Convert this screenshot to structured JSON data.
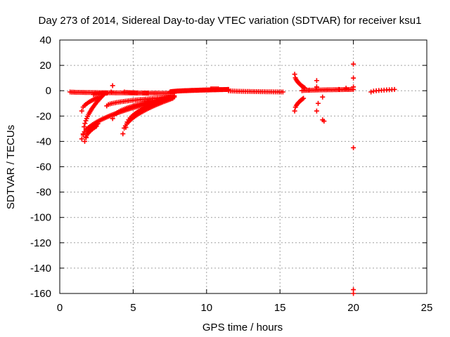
{
  "chart_data": {
    "type": "scatter",
    "title": "Day 273 of 2014, Sidereal Day-to-day VTEC variation (SDTVAR) for receiver ksu1",
    "xlabel": "GPS time / hours",
    "ylabel": "SDTVAR / TECUs",
    "xlim": [
      0,
      25
    ],
    "ylim": [
      -160,
      40
    ],
    "xticks": [
      "0",
      "5",
      "10",
      "15",
      "20",
      "25"
    ],
    "yticks": [
      "40",
      "20",
      "0",
      "-20",
      "-40",
      "-60",
      "-80",
      "-100",
      "-120",
      "-140",
      "-160"
    ],
    "xtick_values": [
      0,
      5,
      10,
      15,
      20,
      25
    ],
    "ytick_values": [
      40,
      20,
      0,
      -20,
      -40,
      -60,
      -80,
      -100,
      -120,
      -140,
      -160
    ],
    "grid": true,
    "marker": "+",
    "series": [
      {
        "name": "SDTVAR",
        "color": "#ff0000",
        "segments": [
          {
            "x0": 0.7,
            "x1": 7.8,
            "y0": -1,
            "y1": -2,
            "n": 70
          },
          {
            "x0": 1.5,
            "x1": 7.8,
            "y0": -38,
            "y1": -5,
            "n": 70
          },
          {
            "x0": 1.6,
            "x1": 3.0,
            "y0": -35,
            "y1": -3,
            "n": 25
          },
          {
            "x0": 1.7,
            "x1": 2.5,
            "y0": -40,
            "y1": -28,
            "n": 12
          },
          {
            "x0": 1.8,
            "x1": 2.6,
            "y0": -37,
            "y1": -26,
            "n": 12
          },
          {
            "x0": 1.5,
            "x1": 2.7,
            "y0": -16,
            "y1": -5,
            "n": 14
          },
          {
            "x0": 2.3,
            "x1": 3.2,
            "y0": -3,
            "y1": -2,
            "n": 10
          },
          {
            "x0": 3.2,
            "x1": 7.7,
            "y0": -12,
            "y1": -5,
            "n": 40
          },
          {
            "x0": 3.6,
            "x1": 7.7,
            "y0": -22,
            "y1": -5,
            "n": 40
          },
          {
            "x0": 4.3,
            "x1": 7.7,
            "y0": -34,
            "y1": -6,
            "n": 40
          },
          {
            "x0": 4.5,
            "x1": 7.8,
            "y0": -29,
            "y1": -4,
            "n": 35
          },
          {
            "x0": 4.4,
            "x1": 6.0,
            "y0": -1,
            "y1": -2,
            "n": 15
          },
          {
            "x0": 7.5,
            "x1": 11.5,
            "y0": -1,
            "y1": 1,
            "n": 60
          },
          {
            "x0": 10.3,
            "x1": 10.8,
            "y0": 1.5,
            "y1": 1.5,
            "n": 6
          },
          {
            "x0": 11.5,
            "x1": 15.2,
            "y0": 0,
            "y1": -1,
            "n": 30
          },
          {
            "x0": 16.0,
            "x1": 16.7,
            "y0": 13,
            "y1": 2,
            "n": 16
          },
          {
            "x0": 16.0,
            "x1": 16.6,
            "y0": -16,
            "y1": -6,
            "n": 12
          },
          {
            "x0": 16.5,
            "x1": 20.0,
            "y0": 0,
            "y1": 1,
            "n": 35
          },
          {
            "x0": 21.2,
            "x1": 22.8,
            "y0": -1,
            "y1": 1,
            "n": 10
          }
        ],
        "points": [
          [
            3.6,
            4
          ],
          [
            3.5,
            -1
          ],
          [
            17.0,
            0.5
          ],
          [
            17.5,
            8
          ],
          [
            17.5,
            3
          ],
          [
            17.6,
            -10
          ],
          [
            17.5,
            -16
          ],
          [
            17.9,
            -5
          ],
          [
            17.9,
            -23
          ],
          [
            18.0,
            -24
          ],
          [
            19.0,
            1
          ],
          [
            19.5,
            2
          ],
          [
            20.0,
            21
          ],
          [
            20.0,
            10
          ],
          [
            20.0,
            3
          ],
          [
            20.0,
            -45
          ],
          [
            20.0,
            -157
          ],
          [
            20.0,
            -160
          ]
        ]
      }
    ]
  }
}
